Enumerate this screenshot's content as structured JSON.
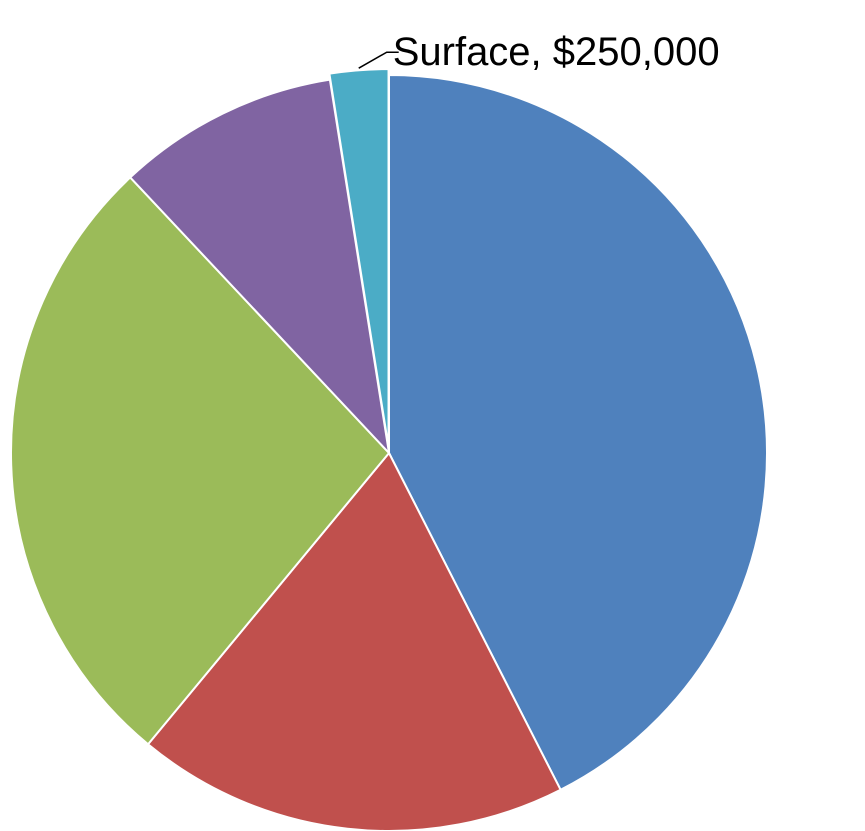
{
  "chart_data": {
    "type": "pie",
    "title": "",
    "start_angle_deg": 0,
    "direction": "clockwise",
    "slices": [
      {
        "value": 42.5,
        "color": "#4F81BD",
        "label": ""
      },
      {
        "value": 18.5,
        "color": "#C0504D",
        "label": ""
      },
      {
        "value": 27.0,
        "color": "#9BBB59",
        "label": ""
      },
      {
        "value": 9.5,
        "color": "#8064A2",
        "label": ""
      },
      {
        "value": 2.5,
        "color": "#4BACC6",
        "label": "Surface, $250,000",
        "exploded": true
      }
    ],
    "legend": "none"
  }
}
